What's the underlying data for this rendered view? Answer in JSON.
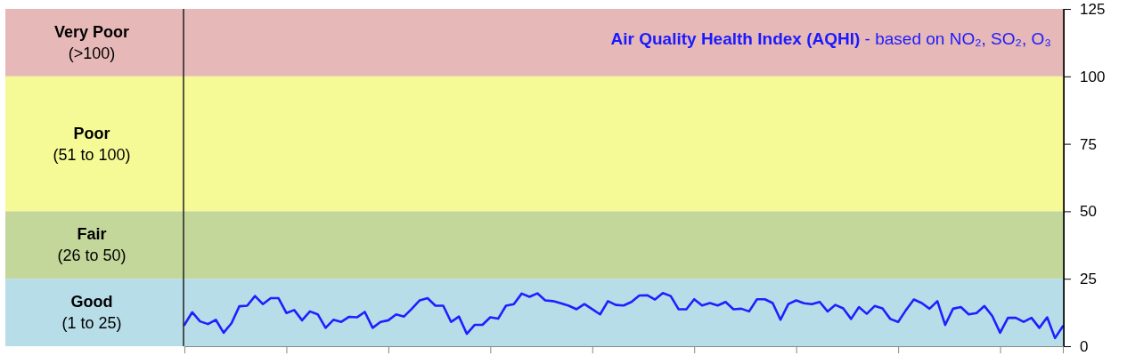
{
  "chart_data": {
    "type": "line",
    "title": "Air Quality Health Index (AQHI)",
    "subtitle": "- based on NO₂, SO₂, O₃",
    "categories": [
      null,
      null,
      null,
      null,
      null,
      null,
      null,
      null,
      null,
      null,
      null,
      null,
      null,
      null,
      null,
      null,
      null,
      null,
      null,
      null,
      null,
      null,
      null,
      null,
      null,
      null,
      null,
      null,
      null,
      null,
      null,
      null,
      null,
      null,
      null,
      null,
      null,
      null,
      null,
      null,
      null,
      null,
      null,
      null,
      null,
      null,
      null,
      null,
      null,
      null,
      null,
      null,
      null,
      null,
      null,
      null,
      null,
      null,
      null,
      null,
      null,
      null,
      null,
      null,
      null,
      null,
      null,
      null,
      null,
      null,
      null,
      null,
      null,
      null,
      null,
      null,
      null,
      null,
      null,
      null,
      null,
      null,
      null,
      null,
      null,
      null,
      null,
      null,
      null,
      null,
      null,
      null,
      null,
      null,
      null,
      null,
      null,
      null,
      null,
      null,
      null,
      null,
      null,
      null,
      null,
      null,
      null,
      null,
      null,
      null,
      null,
      null,
      null
    ],
    "series": [
      {
        "color": "#1f1fff",
        "values": [
          7.9,
          12.6,
          9.2,
          8.2,
          9.8,
          5.0,
          8.5,
          14.8,
          15.0,
          18.6,
          15.6,
          17.8,
          17.8,
          12.3,
          13.4,
          9.6,
          12.9,
          11.8,
          6.8,
          9.8,
          9.0,
          10.9,
          10.7,
          12.7,
          6.8,
          9.0,
          9.6,
          11.8,
          11.0,
          13.9,
          17.0,
          17.8,
          15.0,
          15.0,
          9.0,
          11.0,
          4.6,
          7.9,
          7.9,
          10.7,
          10.2,
          15.0,
          15.6,
          19.5,
          18.3,
          19.6,
          17.0,
          16.7,
          15.9,
          15.0,
          13.7,
          15.6,
          13.7,
          11.8,
          16.7,
          15.3,
          15.1,
          16.4,
          18.8,
          18.9,
          17.3,
          19.7,
          18.6,
          13.7,
          13.7,
          17.4,
          15.1,
          16.0,
          15.1,
          16.4,
          13.7,
          13.9,
          12.9,
          17.4,
          17.4,
          16.0,
          9.8,
          15.6,
          17.0,
          15.9,
          15.6,
          16.4,
          12.9,
          15.3,
          14.0,
          10.1,
          14.5,
          12.0,
          14.9,
          14.0,
          10.1,
          9.0,
          13.4,
          17.3,
          16.0,
          13.9,
          16.7,
          7.9,
          13.9,
          14.5,
          11.8,
          12.3,
          14.9,
          11.2,
          5.0,
          10.5,
          10.5,
          9.0,
          10.5,
          6.8,
          10.7,
          3.0,
          7.4
        ]
      }
    ],
    "ylim": [
      0,
      125
    ],
    "yticks": [
      0,
      25,
      50,
      75,
      100,
      125
    ],
    "tick_labels": "y",
    "grid": false,
    "marker": "none",
    "line_style": "solid",
    "bands": [
      {
        "axis": "y",
        "from": 100,
        "to": 125,
        "label": "Very Poor\n(>100)",
        "color": "#e6b8b7"
      },
      {
        "axis": "y",
        "from": 50,
        "to": 100,
        "label": "Poor\n(51 to 100)",
        "color": "#f5fa96"
      },
      {
        "axis": "y",
        "from": 25,
        "to": 50,
        "label": "Fair\n(26 to 50)",
        "color": "#c4d79b"
      },
      {
        "axis": "y",
        "from": 0,
        "to": 25,
        "label": "Good\n(1 to 25)",
        "color": "#b7dde8"
      }
    ]
  }
}
